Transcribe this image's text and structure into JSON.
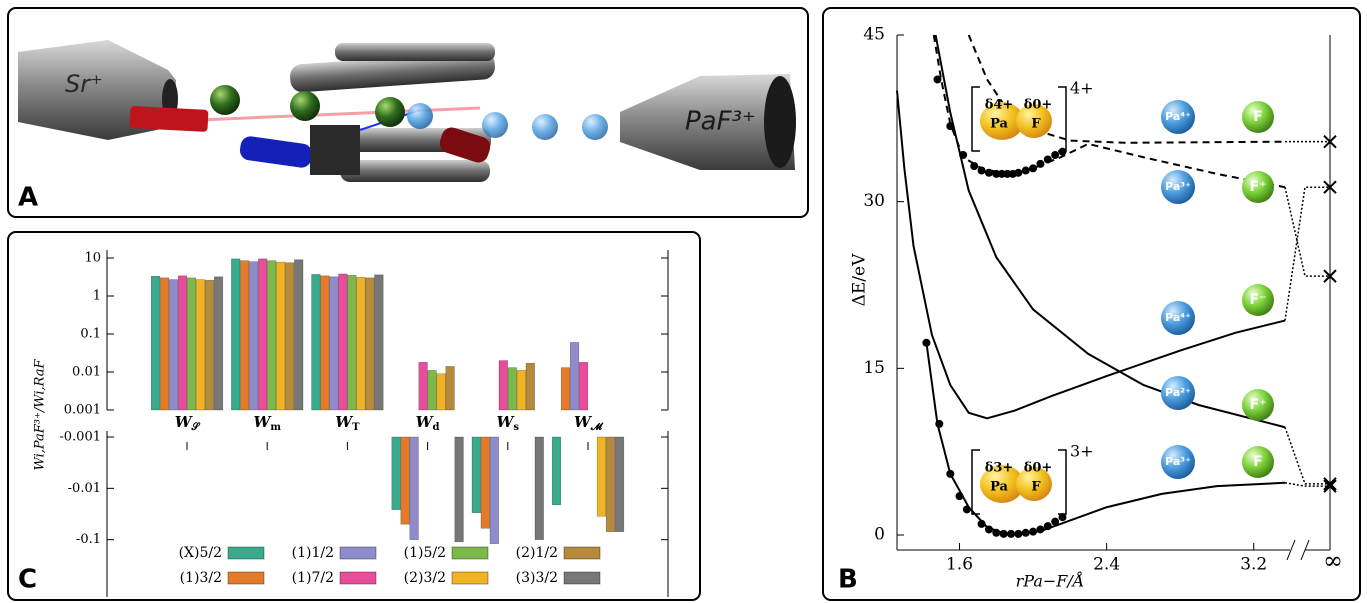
{
  "panels": {
    "a": {
      "label": "A",
      "source_label": "Sr⁺",
      "target_label": "PaF³⁺"
    },
    "b": {
      "label": "B"
    },
    "c": {
      "label": "C"
    }
  },
  "chart_data": [
    {
      "type": "bar",
      "y_label": "Wi,PaF³⁺/Wi,RaF",
      "log_scale": true,
      "categories": [
        "W𝒮",
        "Wm",
        "WT",
        "Wd",
        "Ws",
        "W𝓜"
      ],
      "ylim": [
        0.001,
        10
      ],
      "yticks": [
        10,
        1,
        0.1,
        0.01,
        0.001
      ],
      "ylim_negative": [
        -0.001,
        -1
      ],
      "yticks_negative": [
        -0.001,
        -0.01,
        -0.1
      ],
      "series": [
        {
          "name": "(X)5/2",
          "color": "#3aaa8c",
          "values": [
            3.3,
            9.5,
            3.7,
            -0.026,
            -0.03,
            -0.021
          ]
        },
        {
          "name": "(1)3/2",
          "color": "#e47b2a",
          "values": [
            3.0,
            8.5,
            3.4,
            -0.05,
            -0.06,
            0.013
          ]
        },
        {
          "name": "(1)1/2",
          "color": "#8e8ccb",
          "values": [
            2.7,
            8.0,
            3.2,
            -0.1,
            -0.12,
            0.06
          ]
        },
        {
          "name": "(1)7/2",
          "color": "#e84d9b",
          "values": [
            3.4,
            9.5,
            3.8,
            0.018,
            0.02,
            0.018
          ]
        },
        {
          "name": "(1)5/2",
          "color": "#7cb84a",
          "values": [
            3.0,
            8.5,
            3.5,
            0.011,
            0.013,
            null
          ]
        },
        {
          "name": "(2)3/2",
          "color": "#f0b323",
          "values": [
            2.7,
            7.8,
            3.1,
            0.009,
            0.011,
            -0.035
          ]
        },
        {
          "name": "(2)1/2",
          "color": "#b58a3a",
          "values": [
            2.6,
            7.5,
            3.0,
            0.014,
            0.017,
            -0.07
          ]
        },
        {
          "name": "(3)3/2",
          "color": "#777777",
          "values": [
            3.2,
            9.0,
            3.6,
            -0.11,
            -0.1,
            -0.07
          ]
        }
      ]
    },
    {
      "type": "line",
      "x_label": "rPa−F/Å",
      "y_label": "ΔE/eV",
      "xlim": [
        1.26,
        3.37
      ],
      "xticks": [
        1.6,
        2.4,
        3.2
      ],
      "x_limit_label": "∞",
      "ylim": [
        0,
        45
      ],
      "yticks": [
        0,
        15,
        30,
        45
      ],
      "series": [
        {
          "color": "#000000",
          "dashed": false,
          "limit": 4.4,
          "x": [
            1.42,
            1.48,
            1.55,
            1.65,
            1.75,
            1.85,
            1.95,
            2.05,
            2.2,
            2.4,
            2.7,
            3.0,
            3.37
          ],
          "values": [
            17.3,
            10,
            5.5,
            2.5,
            0.7,
            0.1,
            0.1,
            0.4,
            1.3,
            2.5,
            3.7,
            4.4,
            4.7
          ]
        },
        {
          "color": "#000000",
          "dashed": false,
          "limit": 31.3,
          "x": [
            1.26,
            1.3,
            1.35,
            1.45,
            1.55,
            1.65,
            1.75,
            1.9,
            2.1,
            2.4,
            2.8,
            3.1,
            3.37
          ],
          "values": [
            40,
            33,
            26,
            18,
            13.5,
            11,
            10.5,
            11.2,
            12.5,
            14.3,
            16.6,
            18.2,
            19.3
          ]
        },
        {
          "color": "#000000",
          "dashed": false,
          "limit": 4.6,
          "x": [
            1.47,
            1.55,
            1.65,
            1.8,
            2.0,
            2.3,
            2.6,
            2.9,
            3.37
          ],
          "values": [
            45,
            38,
            31,
            25,
            20.3,
            16.3,
            13.5,
            11.7,
            9.7
          ]
        },
        {
          "color": "#000000",
          "dashed": true,
          "limit": 35.4,
          "x": [
            1.65,
            1.75,
            1.85,
            2.0,
            2.2,
            2.5,
            3.37
          ],
          "values": [
            45,
            41,
            38.5,
            36.5,
            35.5,
            35.3,
            35.4
          ]
        },
        {
          "color": "#000000",
          "dashed": true,
          "limit": 23.3,
          "x": [
            1.46,
            1.5,
            1.55,
            1.62,
            1.72,
            1.85,
            2.0,
            2.15,
            2.3,
            2.6,
            3.0,
            3.37
          ],
          "values": [
            45,
            41,
            37,
            34,
            33,
            32.5,
            33,
            34,
            35.2,
            34,
            32.5,
            31.3
          ]
        }
      ],
      "points": [
        {
          "color": "#000000",
          "x": [
            1.48,
            1.55,
            1.62,
            1.68,
            1.72,
            1.76,
            1.8,
            1.83,
            1.86,
            1.89,
            1.92,
            1.96,
            2.0,
            2.04,
            2.08,
            2.12,
            2.16
          ],
          "values": [
            41,
            36.8,
            34.2,
            33.2,
            32.8,
            32.6,
            32.5,
            32.5,
            32.5,
            32.5,
            32.6,
            32.8,
            33.0,
            33.4,
            33.8,
            34.2,
            34.5
          ]
        },
        {
          "color": "#000000",
          "x": [
            1.42,
            1.49,
            1.55,
            1.6,
            1.64,
            1.72,
            1.76,
            1.8,
            1.84,
            1.88,
            1.92,
            1.96,
            2.0,
            2.04,
            2.08,
            2.12,
            2.16
          ],
          "values": [
            17.3,
            10,
            5.5,
            3.5,
            2.3,
            1.0,
            0.5,
            0.2,
            0.1,
            0.1,
            0.1,
            0.2,
            0.3,
            0.5,
            0.8,
            1.2,
            1.6
          ]
        }
      ],
      "molecules": [
        {
          "charge": "4+",
          "partial_pa": "δ4+",
          "partial_f": "δ0+",
          "atom_pa": "Pa",
          "atom_f": "F"
        },
        {
          "charge": "3+",
          "partial_pa": "δ3+",
          "partial_f": "δ0+",
          "atom_pa": "Pa",
          "atom_f": "F"
        }
      ],
      "ions": [
        {
          "pa": "Pa⁴⁺",
          "f": "F"
        },
        {
          "pa": "Pa³⁺",
          "f": "F⁺"
        },
        {
          "pa": "Pa⁴⁺",
          "f": "F⁻"
        },
        {
          "pa": "Pa²⁺",
          "f": "F⁺"
        },
        {
          "pa": "Pa³⁺",
          "f": "F"
        }
      ]
    }
  ]
}
